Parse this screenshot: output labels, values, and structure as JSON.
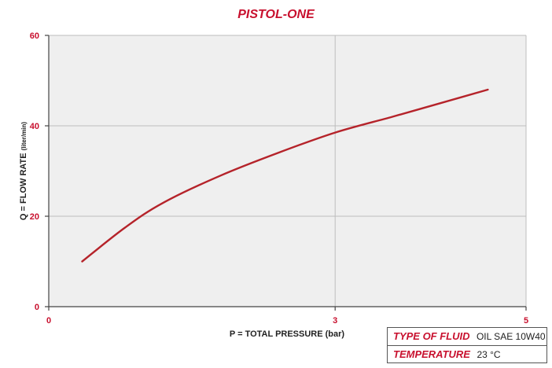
{
  "colors": {
    "accent": "#c8102e",
    "curve": "#b5232a",
    "plot_bg": "#efefef",
    "grid": "#bdbdbd",
    "axis": "#444444",
    "text": "#222222"
  },
  "chart_data": {
    "type": "line",
    "title": "PISTOL-ONE",
    "xlabel": "P = TOTAL PRESSURE (bar)",
    "ylabel": "Q = FLOW RATE (liter/min)",
    "xlim": [
      0,
      5
    ],
    "ylim": [
      0,
      60
    ],
    "x_ticks": [
      0,
      3,
      5
    ],
    "y_ticks": [
      0,
      20,
      40,
      60
    ],
    "grid": true,
    "series": [
      {
        "x": [
          0.35,
          0.8,
          1.2,
          1.8,
          2.4,
          3.0,
          3.6,
          4.1,
          4.6
        ],
        "y": [
          10,
          17.5,
          23,
          29,
          34,
          38.5,
          42,
          45,
          48
        ]
      }
    ]
  },
  "info_box": {
    "fluid_label": "TYPE OF FLUID",
    "fluid_value": "OIL SAE 10W40",
    "temp_label": "TEMPERATURE",
    "temp_value": "23 °C"
  }
}
